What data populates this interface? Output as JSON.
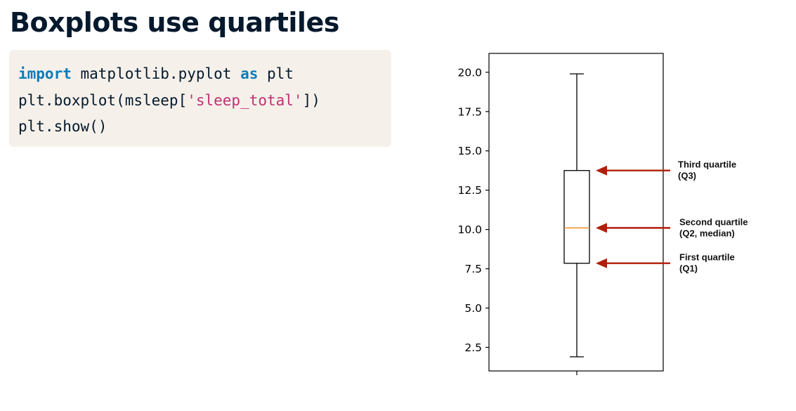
{
  "title": "Boxplots use quartiles",
  "code": {
    "lines": [
      [
        {
          "text": "import",
          "kind": "keyword"
        },
        {
          "text": " matplotlib.pyplot ",
          "kind": "plain"
        },
        {
          "text": "as",
          "kind": "keyword"
        },
        {
          "text": " plt",
          "kind": "plain"
        }
      ],
      [
        {
          "text": "plt.boxplot(msleep[",
          "kind": "plain"
        },
        {
          "text": "'sleep_total'",
          "kind": "string"
        },
        {
          "text": "])",
          "kind": "plain"
        }
      ],
      [
        {
          "text": "plt.show()",
          "kind": "plain"
        }
      ]
    ]
  },
  "colors": {
    "title": "#05192d",
    "code_bg": "#f5f1ea",
    "keyword": "#0c7cba",
    "string": "#bf3072",
    "median": "#f28e2b",
    "arrow": "#b11e0a"
  },
  "chart_data": {
    "type": "boxplot",
    "ylim": [
      1.0,
      21.2
    ],
    "yticks": [
      2.5,
      5.0,
      7.5,
      10.0,
      12.5,
      15.0,
      17.5,
      20.0
    ],
    "ytick_labels": [
      "2.5",
      "5.0",
      "7.5",
      "10.0",
      "12.5",
      "15.0",
      "17.5",
      "20.0"
    ],
    "box": {
      "whisker_low": 1.9,
      "q1": 7.85,
      "median": 10.1,
      "q3": 13.75,
      "whisker_high": 19.9
    },
    "grid": false,
    "annotations": [
      {
        "target": "q3",
        "lines": [
          "Third quartile",
          "(Q3)"
        ]
      },
      {
        "target": "median",
        "lines": [
          "Second quartile",
          "(Q2, median)"
        ]
      },
      {
        "target": "q1",
        "lines": [
          "First quartile",
          "(Q1)"
        ]
      }
    ]
  }
}
